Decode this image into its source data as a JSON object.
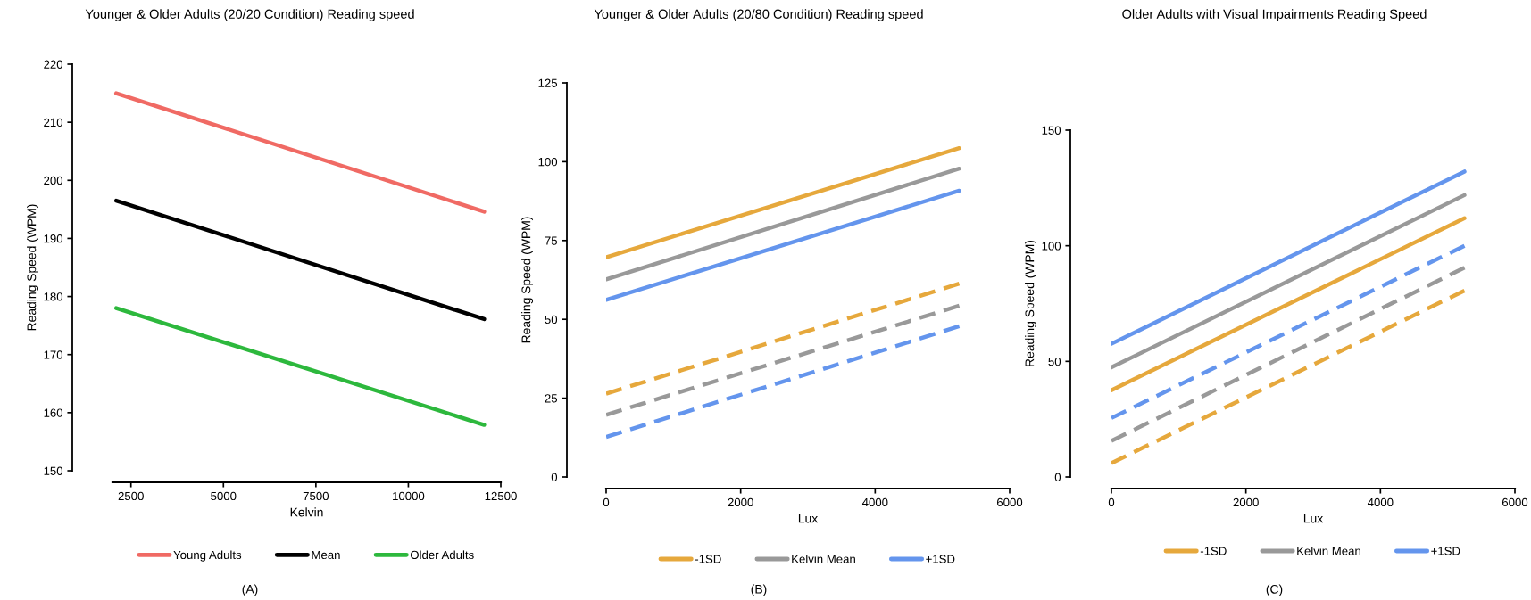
{
  "chart_data": [
    {
      "type": "line",
      "title": "Younger & Older Adults (20/20 Condition) Reading speed",
      "xlabel": "Kelvin",
      "ylabel": "Reading Speed (WPM)",
      "xlim": [
        2000,
        12500
      ],
      "xticks": [
        2500,
        5000,
        7500,
        10000,
        12500
      ],
      "ylim": [
        150,
        220
      ],
      "yticks": [
        150,
        160,
        170,
        180,
        190,
        200,
        210,
        220
      ],
      "grid": false,
      "legend": "bottom",
      "marker": "none",
      "line_style": "solid",
      "x": [
        2100,
        12050
      ],
      "annotations": [
        "(A)"
      ],
      "series": [
        {
          "name": "Young Adults",
          "color": "#f06a64",
          "values": [
            215.0,
            194.6
          ]
        },
        {
          "name": "Mean",
          "color": "#000000",
          "values": [
            196.5,
            176.1
          ]
        },
        {
          "name": "Older Adults",
          "color": "#2db83d",
          "values": [
            178.0,
            157.9
          ]
        }
      ]
    },
    {
      "type": "line",
      "title": "Younger & Older Adults (20/80 Condition) Reading speed",
      "xlabel": "Lux",
      "ylabel": "Reading Speed (WPM)",
      "xlim": [
        0,
        6000
      ],
      "xticks": [
        0,
        2000,
        4000,
        6000
      ],
      "ylim": [
        0,
        125
      ],
      "yticks": [
        0,
        25,
        50,
        75,
        100,
        125
      ],
      "grid": false,
      "legend": "bottom",
      "marker": "none",
      "line_style": "solid",
      "x": [
        0,
        5250
      ],
      "annotations": [
        "(B)"
      ],
      "series": [
        {
          "name": "-1SD",
          "color": "#e6a83c",
          "values": [
            69.7,
            104.3
          ]
        },
        {
          "name": "Kelvin Mean",
          "color": "#999999",
          "values": [
            62.7,
            97.8
          ]
        },
        {
          "name": "+1SD",
          "color": "#6495ed",
          "values": [
            56.2,
            90.8
          ]
        },
        {
          "color": "#e6a83c",
          "line_style": "dashed",
          "values": [
            26.4,
            61.3
          ]
        },
        {
          "color": "#999999",
          "line_style": "dashed",
          "values": [
            19.7,
            54.3
          ]
        },
        {
          "color": "#6495ed",
          "line_style": "dashed",
          "values": [
            12.7,
            47.8
          ]
        }
      ]
    },
    {
      "type": "line",
      "title": "Older Adults with Visual Impairments Reading Speed",
      "xlabel": "Lux",
      "ylabel": "Reading Speed (WPM)",
      "xlim": [
        0,
        6000
      ],
      "xticks": [
        0,
        2000,
        4000,
        6000
      ],
      "ylim": [
        0,
        150
      ],
      "yticks": [
        0,
        50,
        100,
        150
      ],
      "grid": false,
      "legend": "bottom",
      "marker": "none",
      "line_style": "solid",
      "x": [
        0,
        5250
      ],
      "annotations": [
        "(C)"
      ],
      "series": [
        {
          "name": "-1SD",
          "color": "#e6a83c",
          "values": [
            37.5,
            111.9
          ]
        },
        {
          "name": "Kelvin Mean",
          "color": "#999999",
          "values": [
            47.4,
            121.9
          ]
        },
        {
          "name": "+1SD",
          "color": "#6495ed",
          "values": [
            57.6,
            132.1
          ]
        },
        {
          "color": "#e6a83c",
          "line_style": "dashed",
          "values": [
            6.0,
            80.6
          ]
        },
        {
          "color": "#999999",
          "line_style": "dashed",
          "values": [
            15.6,
            90.5
          ]
        },
        {
          "color": "#6495ed",
          "line_style": "dashed",
          "values": [
            25.5,
            100.0
          ]
        }
      ]
    }
  ]
}
